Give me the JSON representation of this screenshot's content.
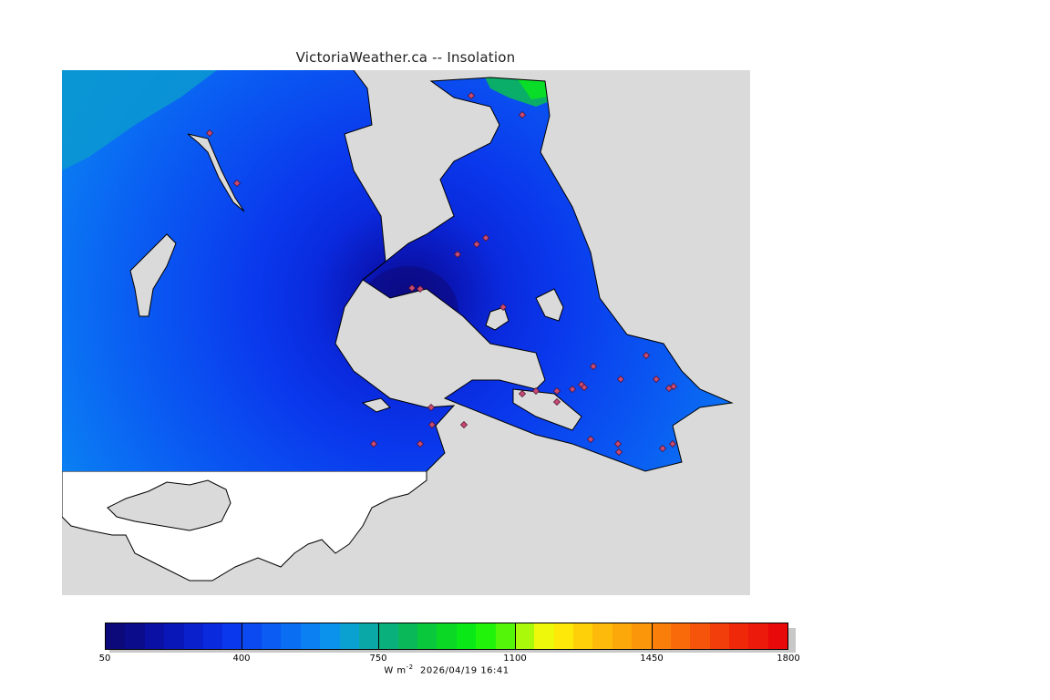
{
  "title": "VictoriaWeather.ca -- Insolation",
  "map": {
    "variable": "insolation",
    "land_mask_color": "#dadada",
    "other_land_color": "#ffffff",
    "coast_color": "#000000",
    "station_marker": "diamond-icon",
    "station_count": 33
  },
  "colorbar": {
    "min": 50,
    "max": 1800,
    "tick_labels": [
      "50",
      "400",
      "750",
      "1100",
      "1450",
      "1800"
    ],
    "colors": [
      "#0c0a7a",
      "#0b0c8c",
      "#0a10a3",
      "#0a17b8",
      "#0a20cc",
      "#0a2ade",
      "#0a38ec",
      "#0a4af0",
      "#0a5cf2",
      "#0a6ef3",
      "#0a80f2",
      "#0a92ed",
      "#0aa0d0",
      "#0aa8a6",
      "#0ab07c",
      "#0ab85a",
      "#0ac83c",
      "#0ad825",
      "#0ae817",
      "#22f30b",
      "#55f50a",
      "#aaf80a",
      "#eef80a",
      "#fde80a",
      "#fdd00a",
      "#fdba0a",
      "#fca80a",
      "#fb950a",
      "#fa7f0a",
      "#f86a0a",
      "#f5540a",
      "#f23e0a",
      "#ef280a",
      "#ec1a0a",
      "#e80a0a"
    ]
  },
  "footer": {
    "units_base": "W m",
    "units_exp": "-2",
    "timestamp": "2026/04/19 16:41"
  }
}
